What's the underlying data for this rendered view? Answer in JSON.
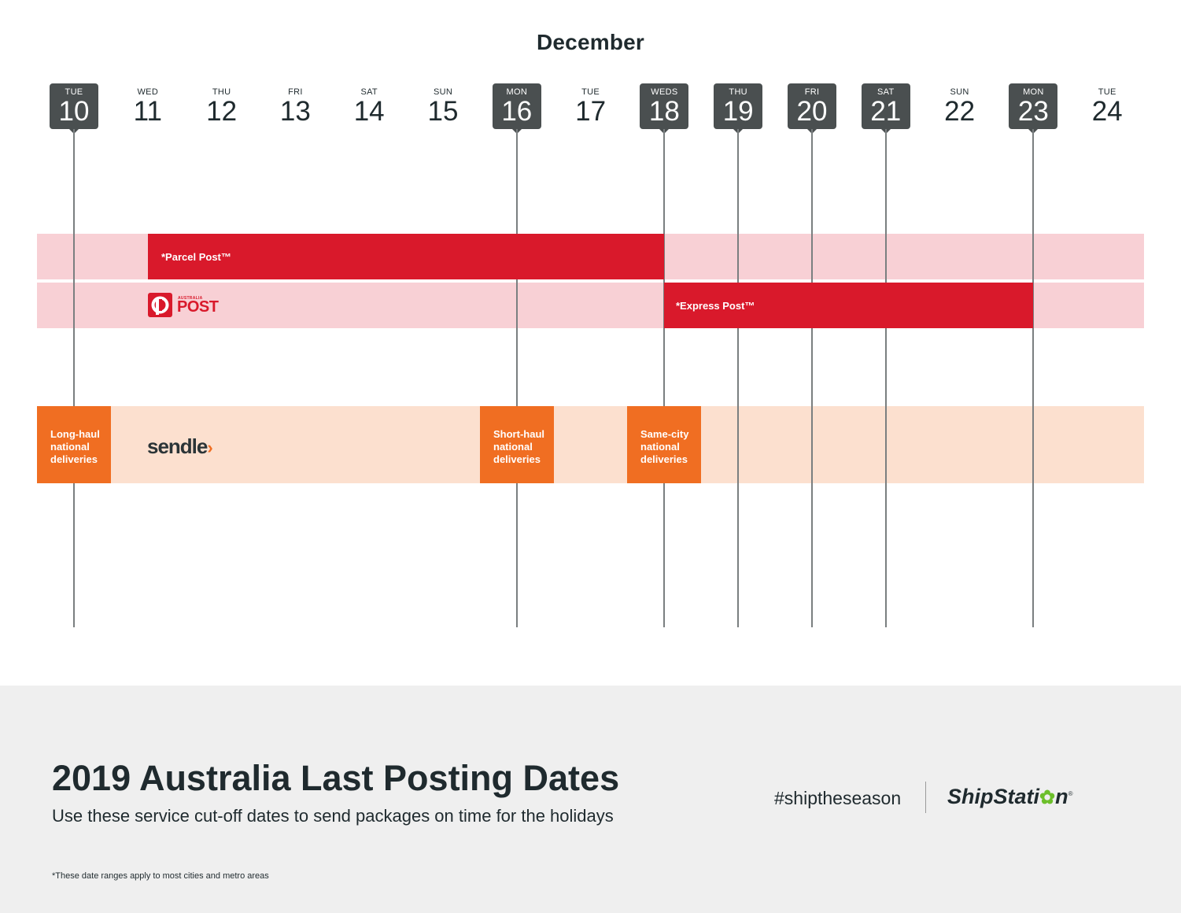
{
  "month": "December",
  "days": [
    {
      "dow": "TUE",
      "num": "10",
      "highlighted": true
    },
    {
      "dow": "WED",
      "num": "11",
      "highlighted": false
    },
    {
      "dow": "THU",
      "num": "12",
      "highlighted": false
    },
    {
      "dow": "FRI",
      "num": "13",
      "highlighted": false
    },
    {
      "dow": "SAT",
      "num": "14",
      "highlighted": false
    },
    {
      "dow": "SUN",
      "num": "15",
      "highlighted": false
    },
    {
      "dow": "MON",
      "num": "16",
      "highlighted": true
    },
    {
      "dow": "TUE",
      "num": "17",
      "highlighted": false
    },
    {
      "dow": "WEDS",
      "num": "18",
      "highlighted": true
    },
    {
      "dow": "THU",
      "num": "19",
      "highlighted": true
    },
    {
      "dow": "FRI",
      "num": "20",
      "highlighted": true
    },
    {
      "dow": "SAT",
      "num": "21",
      "highlighted": true
    },
    {
      "dow": "SUN",
      "num": "22",
      "highlighted": false
    },
    {
      "dow": "MON",
      "num": "23",
      "highlighted": true
    },
    {
      "dow": "TUE",
      "num": "24",
      "highlighted": false
    }
  ],
  "australia_post": {
    "logo_small": "AUSTRALIA",
    "logo_big": "POST",
    "parcel_label": "*Parcel Post™",
    "express_label": "*Express Post™"
  },
  "sendle": {
    "logo": "sendle",
    "logo_chevron": "›",
    "long_haul": [
      "Long-haul",
      "national",
      "deliveries"
    ],
    "short_haul": [
      "Short-haul",
      "national",
      "deliveries"
    ],
    "same_city": [
      "Same-city",
      "national",
      "deliveries"
    ]
  },
  "footer": {
    "title": "2019 Australia Last Posting Dates",
    "subtitle": "Use these service cut-off dates to send packages on time for the holidays",
    "footnote": "*These date ranges apply to most cities and metro areas",
    "hashtag": "#shiptheseason",
    "brand_pre": "ShipStati",
    "brand_gear": "✿",
    "brand_post": "n",
    "brand_reg": "®"
  },
  "colors": {
    "dark_badge": "#4a4f50",
    "auspost_red": "#d9192b",
    "auspost_band": "#f8d0d5",
    "sendle_orange": "#f06e22",
    "sendle_band": "#fce0cf",
    "shipstation_green": "#6cbf2a"
  }
}
